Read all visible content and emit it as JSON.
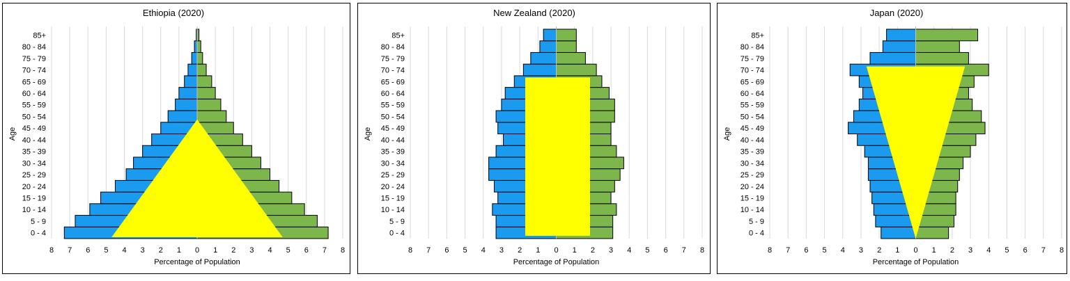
{
  "chart_data": [
    {
      "type": "bar",
      "title": "Ethiopia (2020)",
      "xlabel": "Percentage of Population",
      "ylabel": "Age",
      "categories": [
        "0 - 4",
        "5 - 9",
        "10 - 14",
        "15 - 19",
        "20 - 24",
        "25 - 29",
        "30 - 34",
        "35 - 39",
        "40 - 44",
        "45 - 49",
        "50 - 54",
        "55 - 59",
        "60 - 64",
        "65 - 69",
        "70 - 74",
        "75 - 79",
        "80 - 84",
        "85+"
      ],
      "xticks": [
        "8",
        "7",
        "6",
        "5",
        "4",
        "3",
        "2",
        "1",
        "0",
        "1",
        "2",
        "3",
        "4",
        "5",
        "6",
        "7",
        "8"
      ],
      "xlim": [
        -8,
        8
      ],
      "grid": true,
      "series": [
        {
          "side": "left",
          "color": "#1a9bf0",
          "values": [
            7.3,
            6.7,
            5.9,
            5.3,
            4.5,
            3.9,
            3.5,
            3.0,
            2.5,
            2.0,
            1.6,
            1.2,
            1.0,
            0.7,
            0.5,
            0.3,
            0.15,
            0.05
          ]
        },
        {
          "side": "right",
          "color": "#7db64a",
          "values": [
            7.2,
            6.6,
            5.9,
            5.2,
            4.5,
            4.0,
            3.5,
            3.0,
            2.5,
            2.0,
            1.6,
            1.3,
            1.0,
            0.8,
            0.5,
            0.3,
            0.2,
            0.1
          ]
        }
      ],
      "overlay": {
        "shape": "triangle-up",
        "color": "#ffff00"
      }
    },
    {
      "type": "bar",
      "title": "New Zealand (2020)",
      "xlabel": "Percentage of Population",
      "ylabel": "Age",
      "categories": [
        "0 - 4",
        "5 - 9",
        "10 - 14",
        "15 - 19",
        "20 - 24",
        "25 - 29",
        "30 - 34",
        "35 - 39",
        "40 - 44",
        "45 - 49",
        "50 - 54",
        "55 - 59",
        "60 - 64",
        "65 - 69",
        "70 - 74",
        "75 - 79",
        "80 - 84",
        "85+"
      ],
      "xticks": [
        "8",
        "7",
        "6",
        "5",
        "4",
        "3",
        "2",
        "1",
        "0",
        "1",
        "2",
        "3",
        "4",
        "5",
        "6",
        "7",
        "8"
      ],
      "xlim": [
        -8,
        8
      ],
      "grid": true,
      "series": [
        {
          "side": "left",
          "color": "#1a9bf0",
          "values": [
            3.3,
            3.3,
            3.5,
            3.2,
            3.4,
            3.7,
            3.7,
            3.3,
            2.9,
            3.2,
            3.3,
            3.0,
            2.8,
            2.3,
            1.8,
            1.4,
            0.9,
            0.7
          ]
        },
        {
          "side": "right",
          "color": "#7db64a",
          "values": [
            3.1,
            3.1,
            3.3,
            3.0,
            3.2,
            3.5,
            3.7,
            3.3,
            3.0,
            3.0,
            3.2,
            3.2,
            2.9,
            2.5,
            2.2,
            1.6,
            1.1,
            1.1
          ]
        }
      ],
      "overlay": {
        "shape": "rectangle",
        "color": "#ffff00"
      }
    },
    {
      "type": "bar",
      "title": "Japan (2020)",
      "xlabel": "Percentage of Population",
      "ylabel": "Age",
      "categories": [
        "0 - 4",
        "5 - 9",
        "10 - 14",
        "15 - 19",
        "20 - 24",
        "25 - 29",
        "30 - 34",
        "35 - 39",
        "40 - 44",
        "45 - 49",
        "50 - 54",
        "55 - 59",
        "60 - 64",
        "65 - 69",
        "70 - 74",
        "75 - 79",
        "80 - 84",
        "85+"
      ],
      "xticks": [
        "8",
        "7",
        "6",
        "5",
        "4",
        "3",
        "2",
        "1",
        "0",
        "1",
        "2",
        "3",
        "4",
        "5",
        "6",
        "7",
        "8"
      ],
      "xlim": [
        -8,
        8
      ],
      "grid": true,
      "series": [
        {
          "side": "left",
          "color": "#1a9bf0",
          "values": [
            1.9,
            2.2,
            2.3,
            2.4,
            2.5,
            2.6,
            2.6,
            2.8,
            3.2,
            3.7,
            3.4,
            3.1,
            2.9,
            3.1,
            3.6,
            2.5,
            1.8,
            1.6
          ]
        },
        {
          "side": "right",
          "color": "#7db64a",
          "values": [
            1.8,
            2.1,
            2.2,
            2.2,
            2.3,
            2.4,
            2.6,
            3.0,
            3.3,
            3.8,
            3.6,
            3.1,
            2.9,
            3.2,
            4.0,
            2.9,
            2.4,
            3.4
          ]
        }
      ],
      "overlay": {
        "shape": "triangle-down",
        "color": "#ffff00"
      }
    }
  ]
}
